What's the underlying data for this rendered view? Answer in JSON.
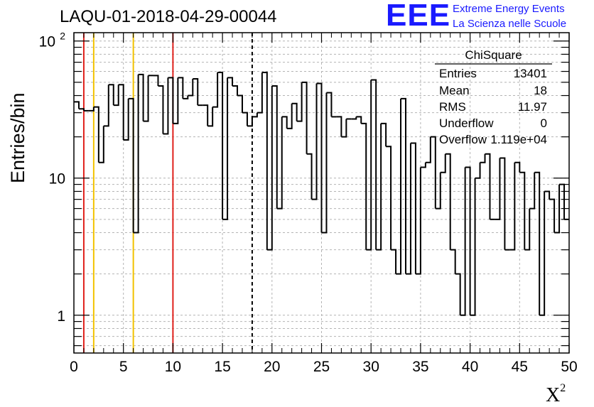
{
  "title": "LAQU-01-2018-04-29-00044",
  "logo": {
    "text": "EEE",
    "line1": "Extreme Energy Events",
    "line2": "La Scienza nelle Scuole",
    "color": "#1a1aff"
  },
  "stats": {
    "name": "ChiSquare",
    "rows": [
      {
        "key": "Entries",
        "value": "13401"
      },
      {
        "key": "Mean",
        "value": "18"
      },
      {
        "key": "RMS",
        "value": "11.97"
      },
      {
        "key": "Underflow",
        "value": "0"
      },
      {
        "key": "Overflow",
        "value": "1.119e+04"
      }
    ]
  },
  "chart_data": {
    "type": "histogram",
    "title": "LAQU-01-2018-04-29-00044",
    "xlabel": "X",
    "xlabel_superscript": "2",
    "ylabel": "Entries/bin",
    "x_range": [
      0,
      50
    ],
    "y_range": [
      0.53,
      115
    ],
    "y_scale": "log",
    "bin_width": 0.5,
    "x_ticks": [
      "0",
      "5",
      "10",
      "15",
      "20",
      "25",
      "30",
      "35",
      "40",
      "45",
      "50"
    ],
    "x_tick_values": [
      0,
      5,
      10,
      15,
      20,
      25,
      30,
      35,
      40,
      45,
      50
    ],
    "y_ticks": [
      {
        "value": 1,
        "label": "1"
      },
      {
        "value": 10,
        "label": "10"
      },
      {
        "value": 100,
        "label": "10",
        "exponent": "2"
      }
    ],
    "grid": true,
    "counts": [
      36,
      32,
      31,
      31,
      33,
      13,
      24,
      48,
      34,
      48,
      19,
      38,
      4,
      57,
      26,
      56,
      56,
      47,
      21,
      54,
      25,
      54,
      38,
      40,
      53,
      34,
      34,
      24,
      33,
      59,
      5,
      54,
      47,
      40,
      30,
      24,
      28,
      30,
      59,
      3,
      47,
      6,
      28,
      23,
      35,
      26,
      50,
      15,
      7,
      49,
      4,
      42,
      28,
      28,
      20,
      27,
      27,
      28,
      25,
      3,
      52,
      3,
      25,
      17,
      3,
      2,
      38,
      2,
      18,
      2,
      12,
      13,
      20,
      6,
      11,
      15,
      3,
      2,
      1,
      12,
      1,
      10,
      13,
      15,
      5,
      5,
      14,
      3,
      3,
      13,
      11,
      3,
      6,
      11,
      1,
      8,
      7,
      4,
      9,
      5
    ],
    "vertical_lines": [
      {
        "x": 1,
        "color": "#e0201b",
        "style": "solid"
      },
      {
        "x": 2,
        "color": "#f2c200",
        "style": "solid"
      },
      {
        "x": 6,
        "color": "#f2c200",
        "style": "solid"
      },
      {
        "x": 10,
        "color": "#e0201b",
        "style": "solid"
      },
      {
        "x": 18,
        "color": "#000000",
        "style": "dashed"
      }
    ],
    "legend_placement": "top-right"
  }
}
